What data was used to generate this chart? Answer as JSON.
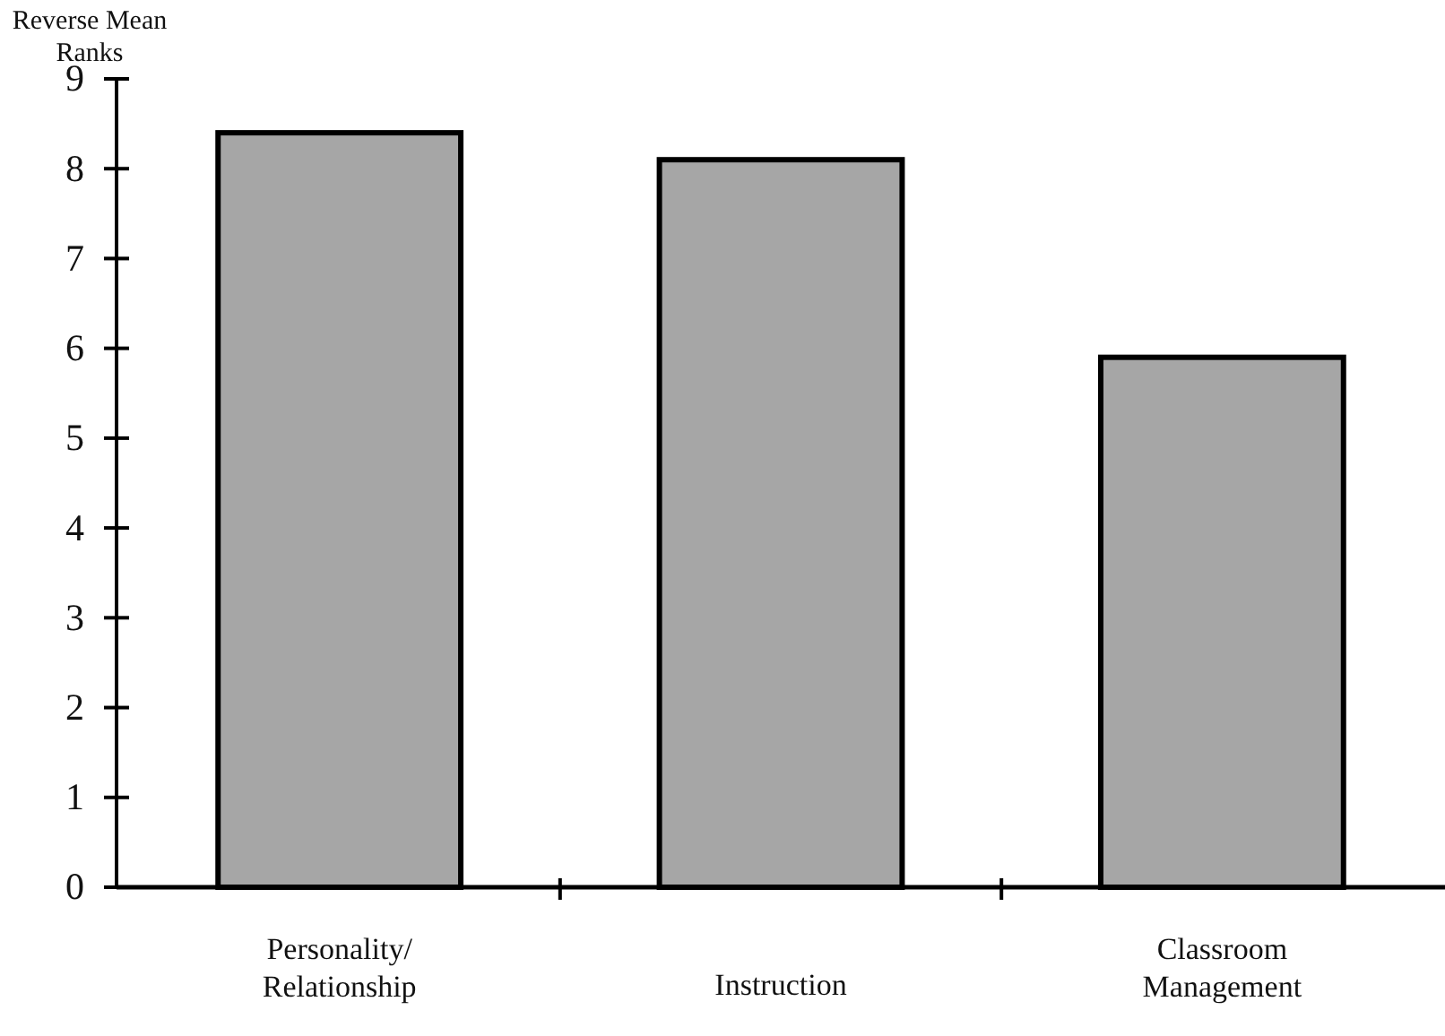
{
  "chart_data": {
    "type": "bar",
    "ylabel": "Reverse Mean Ranks",
    "categories": [
      "Personality/ Relationship",
      "Instruction",
      "Classroom Management"
    ],
    "values": [
      8.4,
      8.1,
      5.9
    ],
    "color": "#a6a6a6",
    "ylim": [
      0,
      9
    ],
    "yticks": [
      0,
      1,
      2,
      3,
      4,
      5,
      6,
      7,
      8,
      9
    ],
    "grid": false
  }
}
